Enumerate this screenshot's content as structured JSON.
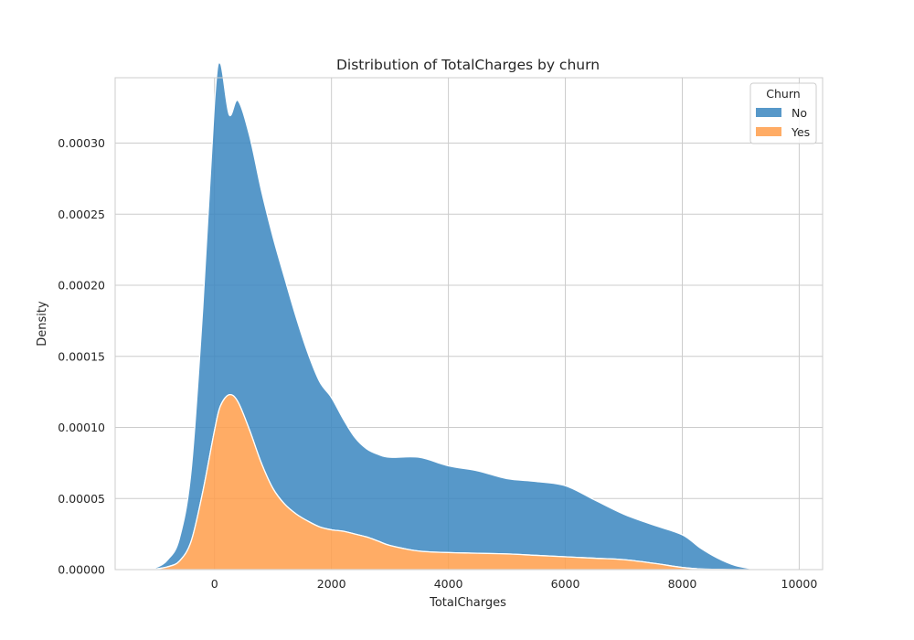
{
  "chart_data": {
    "type": "area",
    "stacked": true,
    "title": "Distribution of TotalCharges by churn",
    "xlabel": "TotalCharges",
    "ylabel": "Density",
    "xlim": [
      -1700,
      10400
    ],
    "ylim": [
      0,
      0.000346
    ],
    "xticks": [
      0,
      2000,
      4000,
      6000,
      8000,
      10000
    ],
    "xtick_labels": [
      "0",
      "2000",
      "4000",
      "6000",
      "8000",
      "10000"
    ],
    "yticks": [
      0,
      5e-05,
      0.0001,
      0.00015,
      0.0002,
      0.00025,
      0.0003
    ],
    "ytick_labels": [
      "0.00000",
      "0.00005",
      "0.00010",
      "0.00015",
      "0.00020",
      "0.00025",
      "0.00030"
    ],
    "grid": true,
    "legend": {
      "title": "Churn",
      "placement": "top-right"
    },
    "x": [
      -1200,
      -1000,
      -800,
      -600,
      -400,
      -200,
      0,
      100,
      250,
      400,
      600,
      800,
      1000,
      1200,
      1400,
      1600,
      1800,
      2000,
      2200,
      2400,
      2600,
      2800,
      3000,
      3500,
      4000,
      4500,
      5000,
      5500,
      6000,
      6500,
      7000,
      7500,
      8000,
      8300,
      8600,
      8900,
      9200
    ],
    "series": [
      {
        "name": "Yes",
        "color": "#ff9e4a",
        "values": [
          0,
          5e-07,
          2e-06,
          6e-06,
          2e-05,
          5.5e-05,
          9.8e-05,
          0.000115,
          0.000123,
          0.000118,
          9.8e-05,
          7.5e-05,
          5.7e-05,
          4.6e-05,
          3.9e-05,
          3.4e-05,
          3e-05,
          2.8e-05,
          2.7e-05,
          2.5e-05,
          2.3e-05,
          2e-05,
          1.7e-05,
          1.3e-05,
          1.2e-05,
          1.15e-05,
          1.1e-05,
          1e-05,
          9e-06,
          8e-06,
          7e-06,
          4.5e-06,
          1.5e-06,
          5e-07,
          2e-07,
          0,
          0
        ]
      },
      {
        "name": "No",
        "color": "#3a86bf",
        "values": [
          0,
          1e-06,
          5e-06,
          1.6e-05,
          5e-05,
          0.00013,
          0.000231,
          0.000241,
          0.000197,
          0.000212,
          0.000207,
          0.000192,
          0.000177,
          0.000159,
          0.000138,
          0.000118,
          0.000102,
          9.3e-05,
          7.9e-05,
          6.8e-05,
          6.2e-05,
          6.1e-05,
          6.2e-05,
          6.6e-05,
          6.1e-05,
          5.8e-05,
          5.3e-05,
          5.2e-05,
          5e-05,
          4.1e-05,
          3.2e-05,
          2.7e-05,
          2.3e-05,
          1.5e-05,
          8e-06,
          3e-06,
          5e-07
        ]
      }
    ]
  }
}
